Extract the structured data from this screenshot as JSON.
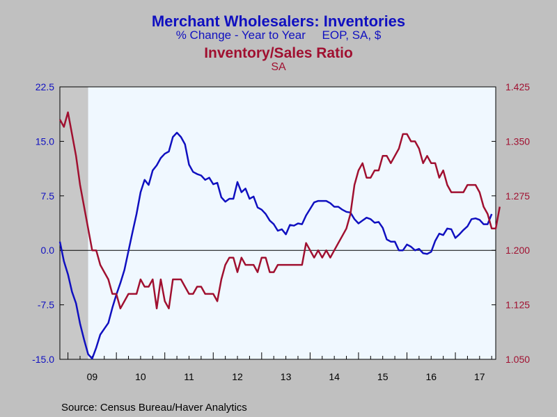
{
  "titles": {
    "line1": "Merchant Wholesalers: Inventories",
    "line2": "% Change - Year to Year     EOP, SA, $",
    "line3": "Inventory/Sales Ratio",
    "line4": "SA"
  },
  "source": "Source:  Census Bureau/Haver Analytics",
  "colors": {
    "blue": "#1010c0",
    "red": "#a01030",
    "plot_bg": "#f0f8ff",
    "recession": "#c8c8c8"
  },
  "chart_data": {
    "type": "line",
    "x_tick_labels": [
      "09",
      "10",
      "11",
      "12",
      "13",
      "14",
      "15",
      "16",
      "17"
    ],
    "x_range": [
      "2008-11",
      "2017-11"
    ],
    "recession": [
      "2008-11",
      "2009-06"
    ],
    "y_left": {
      "ylim": [
        -15.0,
        22.5
      ],
      "ticks": [
        "-15.0",
        "-7.5",
        "0.0",
        "7.5",
        "15.0",
        "22.5"
      ]
    },
    "y_right": {
      "ylim": [
        1.05,
        1.425
      ],
      "ticks": [
        "1.050",
        "1.125",
        "1.200",
        "1.275",
        "1.350",
        "1.425"
      ]
    },
    "series": [
      {
        "axis": "left",
        "start": "2008-11",
        "values": [
          1.2,
          -1.5,
          -3.3,
          -5.7,
          -7.3,
          -10.1,
          -12.3,
          -14.3,
          -14.9,
          -13.4,
          -11.6,
          -10.8,
          -10.0,
          -7.9,
          -6.1,
          -4.5,
          -2.7,
          -0.1,
          2.5,
          5.0,
          8.0,
          9.7,
          9.0,
          11.0,
          11.7,
          12.7,
          13.3,
          13.6,
          15.6,
          16.2,
          15.6,
          14.6,
          11.8,
          10.8,
          10.5,
          10.3,
          9.7,
          10.0,
          9.1,
          9.3,
          7.3,
          6.7,
          7.1,
          7.1,
          9.4,
          8.0,
          8.5,
          7.1,
          7.4,
          5.9,
          5.6,
          5.0,
          4.1,
          3.6,
          2.7,
          2.9,
          2.2,
          3.5,
          3.4,
          3.7,
          3.6,
          4.8,
          5.7,
          6.6,
          6.8,
          6.8,
          6.8,
          6.5,
          6.0,
          6.0,
          5.6,
          5.3,
          5.2,
          4.3,
          3.7,
          4.1,
          4.5,
          4.3,
          3.8,
          3.9,
          3.1,
          1.5,
          1.2,
          1.2,
          0.0,
          0.0,
          0.8,
          0.5,
          0.0,
          0.2,
          -0.4,
          -0.5,
          -0.2,
          1.3,
          2.3,
          2.1,
          3.0,
          2.9,
          1.7,
          2.2,
          2.8,
          3.3,
          4.3,
          4.4,
          4.2,
          3.6,
          3.6,
          5.0
        ]
      },
      {
        "axis": "right",
        "start": "2008-11",
        "values": [
          1.38,
          1.37,
          1.39,
          1.36,
          1.33,
          1.29,
          1.26,
          1.23,
          1.2,
          1.2,
          1.18,
          1.17,
          1.16,
          1.14,
          1.14,
          1.12,
          1.13,
          1.14,
          1.14,
          1.14,
          1.16,
          1.15,
          1.15,
          1.16,
          1.12,
          1.16,
          1.13,
          1.12,
          1.16,
          1.16,
          1.16,
          1.15,
          1.14,
          1.14,
          1.15,
          1.15,
          1.14,
          1.14,
          1.14,
          1.13,
          1.16,
          1.18,
          1.19,
          1.19,
          1.17,
          1.19,
          1.18,
          1.18,
          1.18,
          1.17,
          1.19,
          1.19,
          1.17,
          1.17,
          1.18,
          1.18,
          1.18,
          1.18,
          1.18,
          1.18,
          1.18,
          1.21,
          1.2,
          1.19,
          1.2,
          1.19,
          1.2,
          1.19,
          1.2,
          1.21,
          1.22,
          1.23,
          1.25,
          1.29,
          1.31,
          1.32,
          1.3,
          1.3,
          1.31,
          1.31,
          1.33,
          1.33,
          1.32,
          1.33,
          1.34,
          1.36,
          1.36,
          1.35,
          1.35,
          1.34,
          1.32,
          1.33,
          1.32,
          1.32,
          1.3,
          1.31,
          1.29,
          1.28,
          1.28,
          1.28,
          1.28,
          1.29,
          1.29,
          1.29,
          1.28,
          1.26,
          1.25,
          1.23,
          1.23,
          1.26
        ]
      }
    ]
  }
}
